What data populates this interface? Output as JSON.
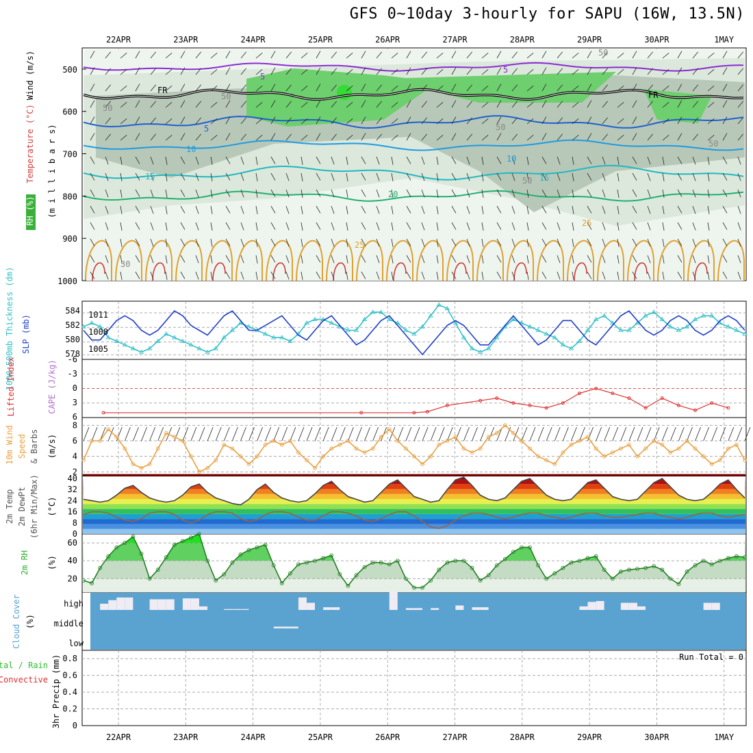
{
  "title": "GFS 0~10day 3-hourly for SAPU (16W, 13.5N)",
  "dates": [
    "22APR",
    "23APR",
    "24APR",
    "25APR",
    "26APR",
    "27APR",
    "28APR",
    "29APR",
    "30APR",
    "1MAY"
  ],
  "colors": {
    "rh_fill": [
      "#eef5ee",
      "#dce8dc",
      "#b8c8b8",
      "#6ecf6e"
    ],
    "temp_lines": [
      "#8a2bd0",
      "#1e5fd0",
      "#1e9be0",
      "#20b8c0",
      "#20b070",
      "#e0a030",
      "#d03030"
    ],
    "slp": "#1f3fc8",
    "thickness": "#30c0c8",
    "lifted": "#e03030",
    "wind": "#e8a040",
    "rh2m": "#40c040",
    "cloud": "#5aa2d0",
    "cloud_bar": "#f0ecf4"
  },
  "panels": {
    "upper": {
      "axis_title": "(m i l l i b a r s)",
      "side_rh": "RH (%)",
      "side_temp": "Temperature (°C)",
      "side_wind": "Wind (m/s)",
      "yticks": [
        "500",
        "600",
        "700",
        "800",
        "900",
        "1000"
      ],
      "contour_labels": [
        {
          "text": "5",
          "color": "#8a2bd0"
        },
        {
          "text": "5",
          "color": "#8a2bd0"
        },
        {
          "text": "FR",
          "color": "#000"
        },
        {
          "text": "FR",
          "color": "#000"
        },
        {
          "text": "5",
          "color": "#1e5fd0"
        },
        {
          "text": "10",
          "color": "#1e9be0"
        },
        {
          "text": "10",
          "color": "#1e9be0"
        },
        {
          "text": "15",
          "color": "#20b8c0"
        },
        {
          "text": "15",
          "color": "#20b8c0"
        },
        {
          "text": "20",
          "color": "#20b070"
        },
        {
          "text": "25",
          "color": "#e0a030"
        },
        {
          "text": "25",
          "color": "#e0a030"
        },
        {
          "text": "50",
          "color": "#888"
        },
        {
          "text": "50",
          "color": "#888"
        },
        {
          "text": "50",
          "color": "#888"
        },
        {
          "text": "50",
          "color": "#888"
        },
        {
          "text": "50",
          "color": "#888"
        },
        {
          "text": "30",
          "color": "#888"
        },
        {
          "text": "50",
          "color": "#888"
        }
      ]
    },
    "slp": {
      "label_thick": "1000-500mb Thickness (dm)",
      "label_slp": "SLP (mb)",
      "yticks_left": [
        "584",
        "582",
        "580",
        "578"
      ],
      "yticks_right": [
        "1011",
        "1008",
        "1005"
      ]
    },
    "cape": {
      "label_li": "Lifted Index",
      "label_cape": "CAPE (J/kg)",
      "yticks": [
        "-6",
        "-3",
        "0",
        "3",
        "6"
      ]
    },
    "wind10": {
      "label1": "10m Wind",
      "label2": "Speed",
      "label3": "& Barbs",
      "unit": "(m/s)",
      "yticks": [
        "8",
        "6",
        "4",
        "2"
      ]
    },
    "temp2m": {
      "label1": "2m Temp",
      "label2": "2m DewPt",
      "label3": "(6hr Min/Max)",
      "unit": "(°C)",
      "yticks": [
        "40",
        "32",
        "24",
        "16",
        "8",
        "0"
      ]
    },
    "rh2m": {
      "label": "2m RH",
      "unit": "(%)",
      "yticks": [
        "60",
        "40",
        "20"
      ]
    },
    "cloud": {
      "label": "Cloud Cover",
      "unit": "(%)",
      "levels": [
        "high",
        "middle",
        "low"
      ]
    },
    "precip": {
      "label1": "Total / Rain",
      "label2": "Convective",
      "label3": "3hr Precip (mm)",
      "run_total": "Run Total = 0",
      "yticks": [
        "0.8",
        "0.6",
        "0.4",
        "0.2",
        "0"
      ]
    }
  },
  "chart_data": [
    {
      "type": "line",
      "title": "",
      "ylabel": "SLP (mb)",
      "ylim": [
        1002,
        1014
      ],
      "series": [
        {
          "name": "SLP (mb)",
          "x_start": 0,
          "step": 0.125,
          "values": [
            1008,
            1006,
            1006,
            1008,
            1010,
            1011,
            1010,
            1008,
            1007,
            1008,
            1010,
            1012,
            1011,
            1009,
            1008,
            1007,
            1009,
            1011,
            1012,
            1010,
            1008,
            1008,
            1009,
            1010,
            1011,
            1009,
            1007,
            1006,
            1008,
            1010,
            1011,
            1009,
            1007,
            1005,
            1006,
            1008,
            1010,
            1011,
            1009,
            1007,
            1005,
            1003,
            1005,
            1007,
            1009,
            1010,
            1009,
            1007,
            1005,
            1005,
            1007,
            1009,
            1011,
            1009,
            1007,
            1005,
            1006,
            1008,
            1010,
            1010,
            1008,
            1006,
            1005,
            1007,
            1009,
            1011,
            1012,
            1010,
            1008,
            1007,
            1008,
            1010,
            1011,
            1010,
            1008,
            1007,
            1008,
            1010,
            1011,
            1010,
            1008
          ]
        }
      ]
    },
    {
      "type": "line",
      "ylabel": "1000-500mb Thickness (dm)",
      "ylim": [
        577,
        585
      ],
      "series": [
        {
          "name": "1000-500mb Thickness (dm)",
          "x_start": 0,
          "step": 0.125,
          "values": [
            581.5,
            582,
            581.5,
            580,
            579.5,
            579,
            578.5,
            578,
            578.5,
            579.5,
            580.5,
            580,
            579.5,
            579,
            578.5,
            578,
            578.5,
            580,
            581,
            582,
            581.5,
            581,
            580.5,
            580,
            580,
            579.5,
            580.5,
            582,
            582.5,
            582.5,
            582,
            581.5,
            581,
            581,
            582.5,
            583.5,
            583.5,
            582.5,
            582,
            581,
            580.5,
            581.5,
            583,
            584.5,
            584,
            582,
            580,
            578.5,
            578,
            578.5,
            580,
            581.5,
            582.5,
            582,
            581.5,
            581,
            580.5,
            580,
            579,
            578.5,
            579.5,
            581,
            582.5,
            583,
            582,
            581,
            581,
            582,
            583,
            583.5,
            582.5,
            581.5,
            581,
            581.5,
            582.5,
            583,
            583,
            582,
            581.5,
            581,
            580.5
          ]
        }
      ]
    },
    {
      "type": "line",
      "ylabel": "Lifted Index",
      "ylim": [
        6,
        -6
      ],
      "series": [
        {
          "name": "Lifted Index",
          "points": [
            [
              0.3,
              5
            ],
            [
              4.2,
              5
            ],
            [
              5.0,
              5
            ],
            [
              5.2,
              4.8
            ],
            [
              5.5,
              3.5
            ],
            [
              6.0,
              2.5
            ],
            [
              6.25,
              2
            ],
            [
              6.5,
              3
            ],
            [
              6.75,
              3.5
            ],
            [
              7.0,
              4
            ],
            [
              7.25,
              3
            ],
            [
              7.5,
              1
            ],
            [
              7.75,
              0
            ],
            [
              8.0,
              1
            ],
            [
              8.25,
              2
            ],
            [
              8.5,
              4
            ],
            [
              8.75,
              2
            ],
            [
              9.0,
              3.5
            ],
            [
              9.25,
              4.5
            ],
            [
              9.5,
              3
            ],
            [
              9.75,
              4
            ]
          ]
        }
      ]
    },
    {
      "type": "line",
      "ylabel": "10m Wind Speed (m/s)",
      "ylim": [
        1.5,
        9
      ],
      "series": [
        {
          "name": "10m Wind Speed",
          "x_start": 0,
          "step": 0.125,
          "values": [
            3.5,
            6,
            6,
            7.5,
            6.5,
            5,
            3,
            2.5,
            3,
            5,
            7,
            6.5,
            6,
            4,
            2,
            2.5,
            3.5,
            5.5,
            5,
            4,
            3,
            4,
            5.5,
            6,
            5.5,
            6,
            4.5,
            3.5,
            2.5,
            4,
            5,
            5.5,
            6,
            5,
            4.5,
            5,
            6.5,
            7.5,
            6,
            5,
            4,
            3,
            4,
            5.5,
            6,
            6.5,
            5,
            4.5,
            5,
            6.5,
            7,
            8,
            7,
            6,
            5,
            4,
            3.5,
            3,
            4.5,
            5.5,
            6,
            6.5,
            5,
            4,
            4.5,
            5,
            5.5,
            4,
            5,
            6,
            5.5,
            4.5,
            5,
            6,
            5,
            4,
            3,
            3.5,
            5,
            5.5,
            3.5
          ]
        }
      ]
    },
    {
      "type": "area",
      "ylabel": "2m Temp (°C)",
      "ylim": [
        0,
        42
      ],
      "series": [
        {
          "name": "2m Temp",
          "x_start": 0,
          "step": 0.125,
          "values": [
            25,
            24,
            23,
            24,
            28,
            33,
            35,
            30,
            26,
            24,
            23,
            24,
            28,
            34,
            36,
            30,
            26,
            24,
            22,
            21,
            25,
            32,
            36,
            30,
            26,
            24,
            23,
            24,
            29,
            35,
            38,
            32,
            27,
            25,
            23,
            24,
            30,
            36,
            39,
            33,
            27,
            25,
            23,
            24,
            32,
            39,
            41,
            35,
            28,
            25,
            24,
            26,
            32,
            38,
            40,
            34,
            28,
            25,
            24,
            25,
            31,
            37,
            39,
            33,
            27,
            25,
            24,
            25,
            31,
            37,
            40,
            34,
            28,
            25,
            24,
            25,
            30,
            36,
            39,
            32,
            26
          ]
        },
        {
          "name": "2m DewPt",
          "x_start": 0,
          "step": 0.125,
          "values": [
            14,
            16,
            16,
            15,
            12,
            10,
            9,
            11,
            15,
            16,
            16,
            14,
            10,
            8,
            10,
            14,
            16,
            16,
            15,
            11,
            9,
            10,
            14,
            16,
            16,
            15,
            12,
            10,
            10,
            13,
            16,
            16,
            15,
            13,
            10,
            9,
            11,
            14,
            16,
            16,
            13,
            9,
            5,
            4,
            6,
            10,
            13,
            15,
            15,
            14,
            12,
            11,
            12,
            14,
            15,
            15,
            13,
            12,
            11,
            12,
            14,
            15,
            15,
            13,
            12,
            12,
            13,
            14,
            15,
            15,
            13,
            12,
            11,
            12,
            14,
            15,
            15,
            13,
            12,
            13,
            14
          ]
        }
      ]
    },
    {
      "type": "area",
      "ylabel": "2m RH (%)",
      "ylim": [
        5,
        70
      ],
      "series": [
        {
          "name": "2m RH",
          "x_start": 0,
          "step": 0.125,
          "values": [
            18,
            15,
            32,
            45,
            55,
            60,
            67,
            48,
            20,
            30,
            44,
            58,
            62,
            66,
            70,
            40,
            18,
            25,
            38,
            47,
            52,
            55,
            58,
            35,
            15,
            26,
            36,
            38,
            40,
            43,
            46,
            25,
            12,
            24,
            33,
            38,
            38,
            36,
            40,
            20,
            10,
            10,
            18,
            30,
            38,
            40,
            40,
            32,
            18,
            24,
            35,
            42,
            50,
            55,
            55,
            35,
            20,
            26,
            32,
            38,
            40,
            43,
            45,
            30,
            20,
            28,
            30,
            31,
            32,
            34,
            30,
            20,
            14,
            28,
            35,
            40,
            36,
            40,
            43,
            45,
            44
          ]
        }
      ]
    },
    {
      "type": "bar",
      "ylabel": "Cloud Cover (%)",
      "series": [
        {
          "name": "high",
          "x_start": 0,
          "step": 0.125,
          "values": [
            0,
            0,
            35,
            55,
            70,
            70,
            0,
            0,
            60,
            60,
            60,
            0,
            65,
            65,
            20,
            0,
            0,
            5,
            5,
            5,
            0,
            0,
            0,
            0,
            0,
            0,
            70,
            40,
            0,
            15,
            15,
            0,
            0,
            0,
            0,
            0,
            0,
            100,
            0,
            10,
            10,
            0,
            10,
            0,
            0,
            25,
            0,
            15,
            15,
            0,
            0,
            0,
            0,
            0,
            0,
            0,
            0,
            0,
            0,
            0,
            20,
            45,
            50,
            0,
            0,
            40,
            40,
            20,
            0,
            0,
            0,
            0,
            0,
            0,
            0,
            40,
            40,
            0,
            0,
            0,
            0
          ]
        },
        {
          "name": "middle",
          "x_start": 0,
          "step": 0.125,
          "values": [
            0,
            0,
            0,
            0,
            0,
            0,
            0,
            0,
            0,
            0,
            0,
            0,
            0,
            0,
            0,
            0,
            0,
            0,
            0,
            0,
            0,
            0,
            0,
            10,
            10,
            10,
            0,
            0,
            0,
            0,
            0,
            0,
            0,
            0,
            0,
            0,
            0,
            0,
            0,
            0,
            0,
            0,
            0,
            0,
            0,
            0,
            0,
            0,
            0,
            0,
            0,
            0,
            0,
            0,
            0,
            0,
            0,
            0,
            0,
            0,
            0,
            0,
            0,
            0,
            0,
            0,
            0,
            0,
            0,
            0,
            0,
            0,
            0,
            0,
            0,
            0,
            0,
            0,
            0,
            0,
            0
          ]
        }
      ]
    },
    {
      "type": "bar",
      "ylabel": "3hr Precip (mm)",
      "ylim": [
        0,
        0.9
      ],
      "series": [
        {
          "name": "Total / Rain",
          "x_start": 0,
          "step": 0.125,
          "values": [
            0
          ]
        }
      ]
    }
  ]
}
